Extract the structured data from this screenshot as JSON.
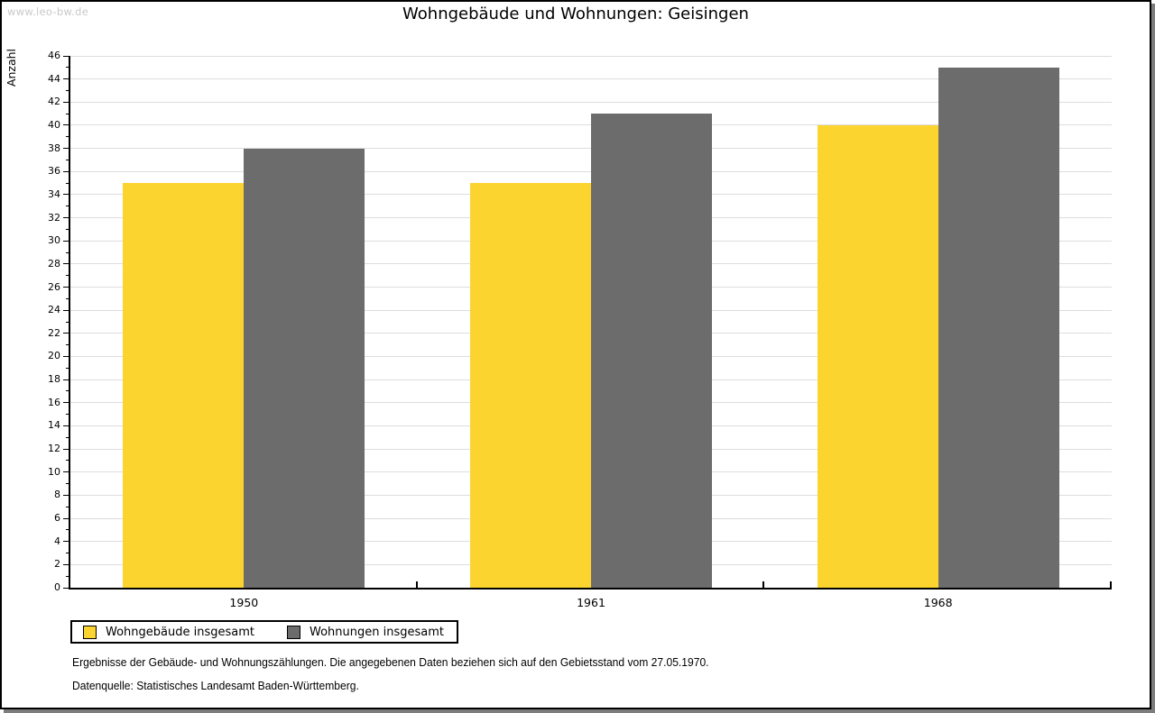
{
  "page": {
    "watermark": "www.leo-bw.de",
    "notes": {
      "line1": "Ergebnisse der Gebäude- und Wohnungszählungen. Die angegebenen Daten beziehen sich auf den Gebietsstand vom 27.05.1970.",
      "line2": "Datenquelle: Statistisches Landesamt Baden-Württemberg."
    }
  },
  "chart_data": {
    "type": "bar",
    "title": "Wohngebäude und Wohnungen: Geisingen",
    "xlabel": "",
    "ylabel": "Anzahl",
    "categories": [
      "1950",
      "1961",
      "1968"
    ],
    "series": [
      {
        "name": "Wohngebäude insgesamt",
        "color": "#FCD42F",
        "values": [
          35,
          35,
          40
        ]
      },
      {
        "name": "Wohnungen insgesamt",
        "color": "#6C6C6C",
        "values": [
          38,
          41,
          45
        ]
      }
    ],
    "ylim": [
      0,
      46
    ],
    "ytick_step": 2,
    "minor_tick_step": 1,
    "grid": true,
    "gridline_color": "#dddddd",
    "axis_color": "#000000",
    "legend_position": "bottom-left"
  }
}
